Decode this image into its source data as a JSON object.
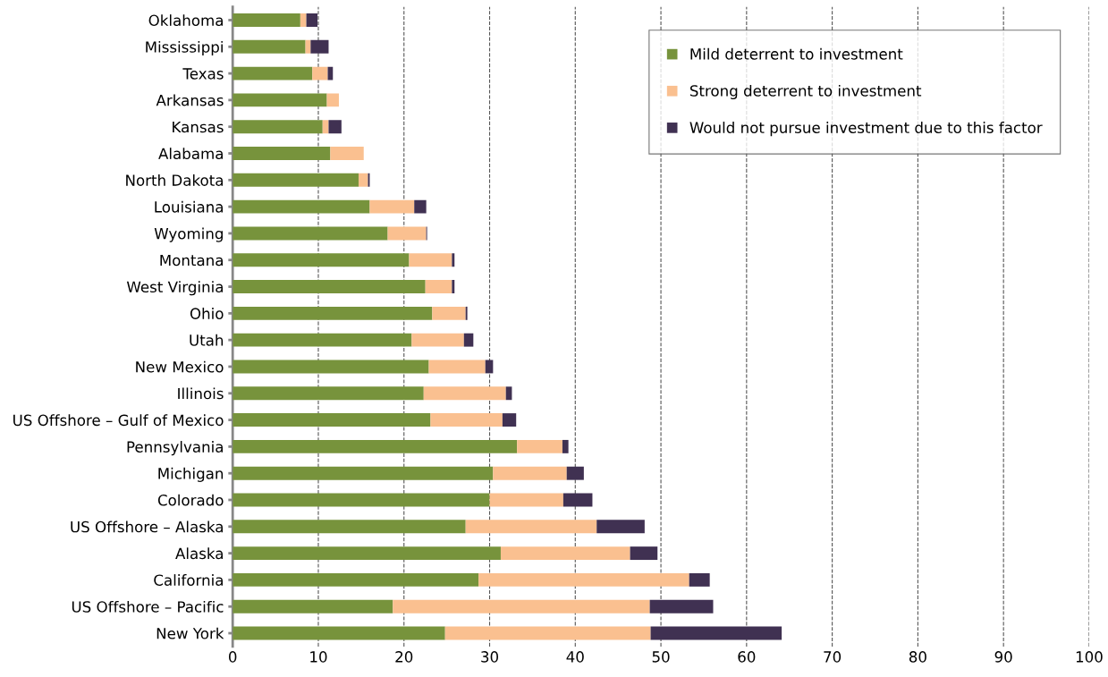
{
  "chart_data": {
    "type": "bar",
    "orientation": "horizontal",
    "stacked": true,
    "categories": [
      "Oklahoma",
      "Mississippi",
      "Texas",
      "Arkansas",
      "Kansas",
      "Alabama",
      "North Dakota",
      "Louisiana",
      "Wyoming",
      "Montana",
      "West Virginia",
      "Ohio",
      "Utah",
      "New Mexico",
      "Illinois",
      "US Offshore – Gulf of Mexico",
      "Pennsylvania",
      "Michigan",
      "Colorado",
      "US Offshore – Alaska",
      "Alaska",
      "California",
      "US Offshore – Pacific",
      "New York"
    ],
    "series": [
      {
        "name": "Mild deterrent to investment",
        "color": "#77933c",
        "values": [
          7.9,
          8.5,
          9.3,
          11.0,
          10.5,
          11.4,
          14.7,
          16.0,
          18.1,
          20.6,
          22.5,
          23.3,
          20.9,
          22.9,
          22.3,
          23.1,
          33.2,
          30.4,
          30.0,
          27.2,
          31.3,
          28.7,
          18.7,
          24.8
        ]
      },
      {
        "name": "Strong deterrent to investment",
        "color": "#fac090",
        "values": [
          0.7,
          0.6,
          1.8,
          1.4,
          0.7,
          3.9,
          1.1,
          5.2,
          4.5,
          5.0,
          3.1,
          3.9,
          6.1,
          6.6,
          9.6,
          8.4,
          5.3,
          8.6,
          8.6,
          15.3,
          15.1,
          24.6,
          30.0,
          24.0
        ]
      },
      {
        "name": "Would not pursue investment due to this factor",
        "color": "#403152",
        "values": [
          1.3,
          2.1,
          0.6,
          0,
          1.5,
          0,
          0.2,
          1.4,
          0.1,
          0.3,
          0.3,
          0.2,
          1.1,
          0.9,
          0.7,
          1.6,
          0.7,
          2.0,
          3.4,
          5.6,
          3.2,
          2.4,
          7.4,
          15.3
        ]
      }
    ],
    "xlim": [
      0,
      100
    ],
    "xticks": [
      0,
      10,
      20,
      30,
      40,
      50,
      60,
      70,
      80,
      90,
      100
    ],
    "grid": "x",
    "legend": "top right"
  }
}
